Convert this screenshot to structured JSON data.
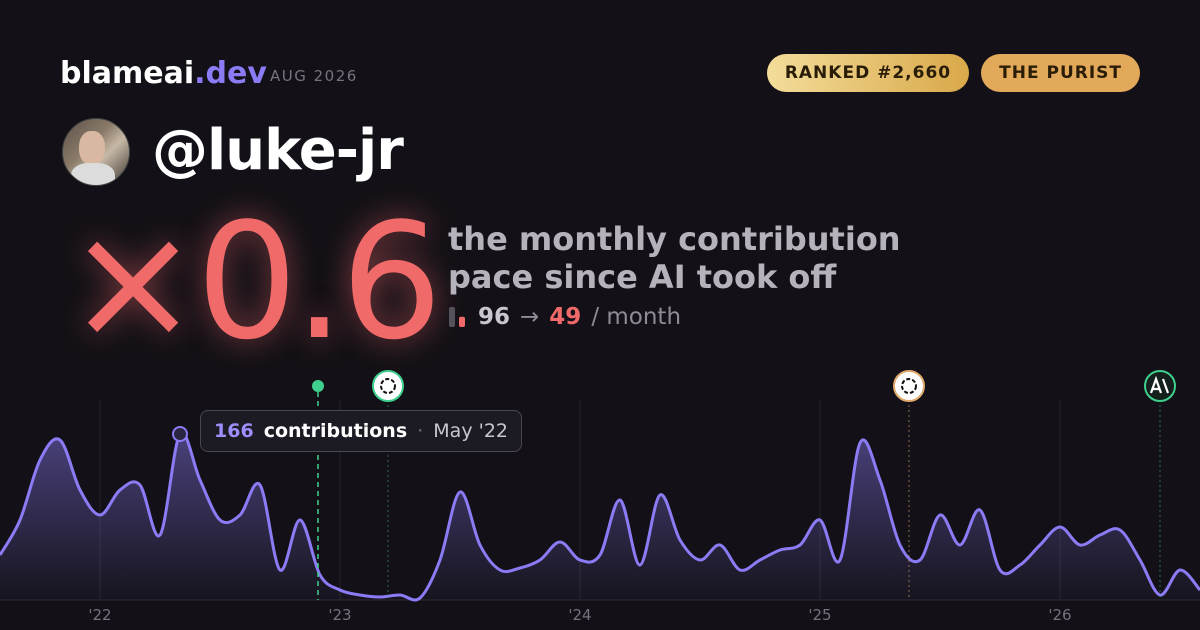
{
  "header": {
    "brand": "blameai",
    "brand_tld": ".dev",
    "period": "AUG 2026",
    "badges": [
      "RANKED #2,660",
      "THE PURIST"
    ],
    "username": "@luke-jr",
    "multiplier": "×0.6",
    "description": [
      "the monthly contribution",
      "pace since AI took off"
    ],
    "pace": {
      "before": 96,
      "arrow": "→",
      "after": 49,
      "unit": "/ month"
    }
  },
  "chart_data": {
    "type": "area",
    "color": "#8b7cf6",
    "categories": [
      null,
      null,
      null,
      null,
      null,
      "'22",
      null,
      null,
      null,
      null,
      null,
      null,
      null,
      null,
      null,
      null,
      null,
      "'23",
      null,
      null,
      null,
      null,
      null,
      null,
      null,
      null,
      null,
      null,
      null,
      "'24",
      null,
      null,
      null,
      null,
      null,
      null,
      null,
      null,
      null,
      null,
      null,
      "'25",
      null,
      null,
      null,
      null,
      null,
      null,
      null,
      null,
      null,
      null,
      null,
      "'26",
      null,
      null,
      null,
      null,
      null,
      null,
      null
    ],
    "values": [
      45,
      80,
      140,
      160,
      110,
      85,
      110,
      115,
      65,
      166,
      120,
      80,
      85,
      115,
      30,
      80,
      25,
      10,
      5,
      3,
      5,
      2,
      40,
      108,
      55,
      30,
      32,
      40,
      58,
      40,
      45,
      100,
      35,
      105,
      60,
      40,
      55,
      30,
      40,
      50,
      55,
      80,
      40,
      157,
      120,
      55,
      40,
      85,
      55,
      90,
      30,
      35,
      55,
      73,
      55,
      65,
      70,
      40,
      5,
      30,
      10
    ],
    "ylim": [
      0,
      200
    ],
    "tooltip": {
      "label": "contributions",
      "date": "May '22",
      "index": 9
    }
  }
}
